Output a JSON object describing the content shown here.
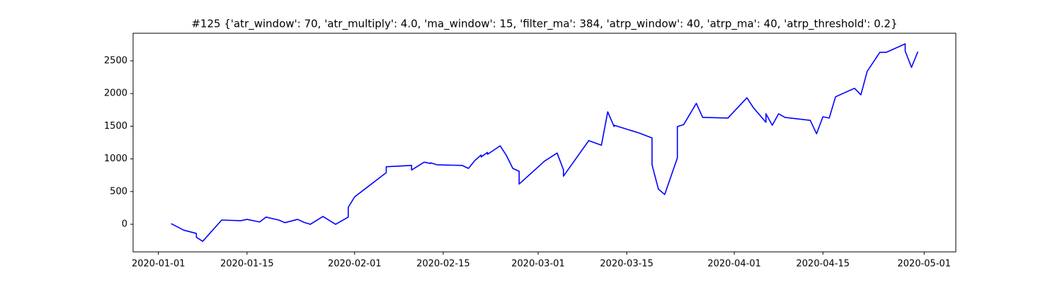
{
  "chart_data": {
    "type": "line",
    "title": "#125 {'atr_window': 70, 'atr_multiply': 4.0, 'ma_window': 15, 'filter_ma': 384, 'atrp_window': 40, 'atrp_ma': 40, 'atrp_threshold': 0.2}",
    "x": [
      "2020-01-03",
      "2020-01-04",
      "2020-01-05",
      "2020-01-07",
      "2020-01-07",
      "2020-01-08",
      "2020-01-11",
      "2020-01-14",
      "2020-01-15",
      "2020-01-17",
      "2020-01-18",
      "2020-01-20",
      "2020-01-21",
      "2020-01-23",
      "2020-01-24",
      "2020-01-25",
      "2020-01-27",
      "2020-01-29",
      "2020-01-31",
      "2020-01-31",
      "2020-02-01",
      "2020-02-06",
      "2020-02-06",
      "2020-02-10",
      "2020-02-10",
      "2020-02-12",
      "2020-02-13",
      "2020-02-13",
      "2020-02-14",
      "2020-02-18",
      "2020-02-19",
      "2020-02-20",
      "2020-02-21",
      "2020-02-21",
      "2020-02-22",
      "2020-02-22",
      "2020-02-24",
      "2020-02-25",
      "2020-02-26",
      "2020-02-27",
      "2020-02-27",
      "2020-03-02",
      "2020-03-04",
      "2020-03-05",
      "2020-03-05",
      "2020-03-09",
      "2020-03-11",
      "2020-03-12",
      "2020-03-13",
      "2020-03-13",
      "2020-03-17",
      "2020-03-19",
      "2020-03-19",
      "2020-03-20",
      "2020-03-21",
      "2020-03-23",
      "2020-03-23",
      "2020-03-24",
      "2020-03-26",
      "2020-03-27",
      "2020-03-31",
      "2020-04-01",
      "2020-04-03",
      "2020-04-04",
      "2020-04-06",
      "2020-04-06",
      "2020-04-07",
      "2020-04-08",
      "2020-04-09",
      "2020-04-13",
      "2020-04-14",
      "2020-04-15",
      "2020-04-16",
      "2020-04-17",
      "2020-04-20",
      "2020-04-21",
      "2020-04-22",
      "2020-04-24",
      "2020-04-25",
      "2020-04-28",
      "2020-04-28",
      "2020-04-29",
      "2020-04-30"
    ],
    "series": [
      {
        "color": "#0000ff",
        "values": [
          10,
          -40,
          -90,
          -140,
          -200,
          -260,
          65,
          55,
          75,
          35,
          110,
          65,
          25,
          75,
          30,
          0,
          120,
          0,
          110,
          260,
          419,
          790,
          880,
          900,
          830,
          950,
          930,
          940,
          910,
          900,
          855,
          975,
          1060,
          1030,
          1100,
          1070,
          1200,
          1050,
          855,
          810,
          615,
          965,
          1090,
          835,
          735,
          1280,
          1210,
          1720,
          1495,
          1515,
          1395,
          1320,
          910,
          540,
          455,
          1015,
          1495,
          1525,
          1850,
          1635,
          1625,
          1730,
          1935,
          1785,
          1560,
          1690,
          1515,
          1690,
          1635,
          1590,
          1385,
          1645,
          1625,
          1950,
          2080,
          1980,
          2340,
          2630,
          2630,
          2760,
          2650,
          2400,
          2640
        ]
      }
    ],
    "xlim": [
      "2019-12-28",
      "2020-05-06"
    ],
    "xticks": [
      "2020-01-01",
      "2020-01-15",
      "2020-02-01",
      "2020-02-15",
      "2020-03-01",
      "2020-03-15",
      "2020-04-01",
      "2020-04-15",
      "2020-05-01"
    ],
    "ylim": [
      -422,
      2922
    ],
    "yticks": [
      0,
      500,
      1000,
      1500,
      2000,
      2500
    ]
  }
}
